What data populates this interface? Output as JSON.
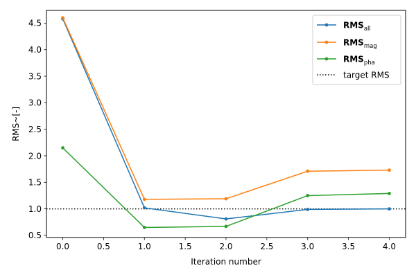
{
  "chart_data": {
    "type": "line",
    "title": "",
    "xlabel": "Iteration number",
    "ylabel": "RMS~[-]",
    "x": [
      0.0,
      1.0,
      2.0,
      3.0,
      4.0
    ],
    "xlim": [
      -0.2,
      4.2
    ],
    "ylim": [
      0.46,
      4.74
    ],
    "xticks": [
      0.0,
      0.5,
      1.0,
      1.5,
      2.0,
      2.5,
      3.0,
      3.5,
      4.0
    ],
    "xtick_labels": [
      "0.0",
      "0.5",
      "1.0",
      "1.5",
      "2.0",
      "2.5",
      "3.0",
      "3.5",
      "4.0"
    ],
    "yticks": [
      0.5,
      1.0,
      1.5,
      2.0,
      2.5,
      3.0,
      3.5,
      4.0,
      4.5
    ],
    "ytick_labels": [
      "0.5",
      "1.0",
      "1.5",
      "2.0",
      "2.5",
      "3.0",
      "3.5",
      "4.0",
      "4.5"
    ],
    "grid": false,
    "legend_position": "top-right",
    "series": [
      {
        "name": "RMS",
        "sub": "all",
        "color": "#1f77b4",
        "marker": "circle",
        "values": [
          4.58,
          1.02,
          0.81,
          0.99,
          1.0
        ]
      },
      {
        "name": "RMS",
        "sub": "mag",
        "color": "#ff7f0e",
        "marker": "circle",
        "values": [
          4.6,
          1.18,
          1.19,
          1.71,
          1.73
        ]
      },
      {
        "name": "RMS",
        "sub": "pha",
        "color": "#2ca02c",
        "marker": "circle",
        "values": [
          2.15,
          0.65,
          0.67,
          1.25,
          1.29
        ]
      }
    ],
    "reference_line": {
      "name": "target RMS",
      "y": 1.0,
      "color": "#000000",
      "style": "dotted"
    }
  }
}
